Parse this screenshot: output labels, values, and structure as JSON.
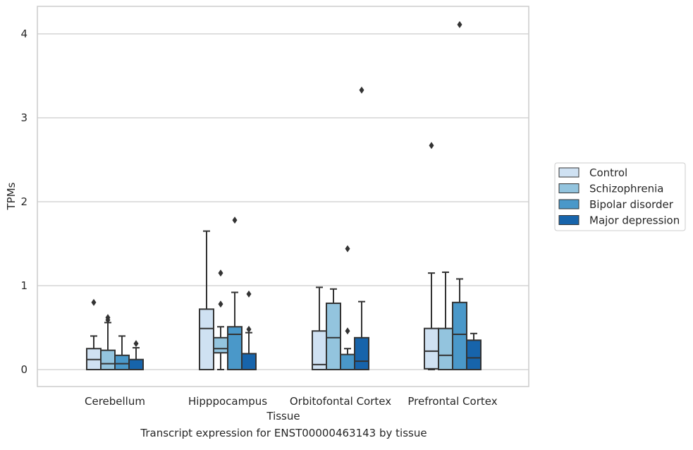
{
  "caption": "Transcript expression for ENST00000463143 by tissue",
  "colors": {
    "Control": "#cfe1f2",
    "Schizophrenia": "#93c4de",
    "Bipolar disorder": "#4a98c9",
    "Major depression": "#1764ab",
    "grid": "#cccccc",
    "frame": "#cccccc",
    "line": "#333333"
  },
  "chart_data": {
    "type": "box",
    "xlabel": "Tissue",
    "ylabel": "TPMs",
    "ylim": [
      -0.2,
      4.32
    ],
    "yticks": [
      0,
      1,
      2,
      3,
      4
    ],
    "ytick_labels": [
      "0",
      "1",
      "2",
      "3",
      "4"
    ],
    "grid": "horizontal",
    "legend_position": "right, outside plot",
    "categories": [
      "Cerebellum",
      "Hipppocampus",
      "Orbitofontal Cortex",
      "Prefrontal Cortex"
    ],
    "series": [
      {
        "name": "Control",
        "boxes": [
          {
            "whislo": 0.0,
            "q1": 0.0,
            "med": 0.12,
            "q3": 0.25,
            "whishi": 0.4,
            "fliers": [
              0.8
            ]
          },
          {
            "whislo": 0.0,
            "q1": 0.0,
            "med": 0.49,
            "q3": 0.72,
            "whishi": 1.65,
            "fliers": []
          },
          {
            "whislo": 0.0,
            "q1": 0.0,
            "med": 0.06,
            "q3": 0.46,
            "whishi": 0.98,
            "fliers": []
          },
          {
            "whislo": 0.0,
            "q1": 0.01,
            "med": 0.22,
            "q3": 0.49,
            "whishi": 1.15,
            "fliers": [
              2.67
            ]
          }
        ]
      },
      {
        "name": "Schizophrenia",
        "boxes": [
          {
            "whislo": 0.0,
            "q1": 0.0,
            "med": 0.07,
            "q3": 0.23,
            "whishi": 0.56,
            "fliers": [
              0.59,
              0.62
            ]
          },
          {
            "whislo": 0.0,
            "q1": 0.2,
            "med": 0.25,
            "q3": 0.38,
            "whishi": 0.51,
            "fliers": [
              0.78,
              1.15
            ]
          },
          {
            "whislo": 0.0,
            "q1": 0.0,
            "med": 0.38,
            "q3": 0.79,
            "whishi": 0.96,
            "fliers": []
          },
          {
            "whislo": 0.0,
            "q1": 0.0,
            "med": 0.17,
            "q3": 0.49,
            "whishi": 1.16,
            "fliers": []
          }
        ]
      },
      {
        "name": "Bipolar disorder",
        "boxes": [
          {
            "whislo": 0.0,
            "q1": 0.0,
            "med": 0.07,
            "q3": 0.17,
            "whishi": 0.4,
            "fliers": []
          },
          {
            "whislo": 0.0,
            "q1": 0.0,
            "med": 0.42,
            "q3": 0.51,
            "whishi": 0.92,
            "fliers": [
              1.78
            ]
          },
          {
            "whislo": 0.0,
            "q1": 0.0,
            "med": 0.0,
            "q3": 0.18,
            "whishi": 0.25,
            "fliers": [
              0.46,
              1.44
            ]
          },
          {
            "whislo": 0.0,
            "q1": 0.0,
            "med": 0.42,
            "q3": 0.8,
            "whishi": 1.08,
            "fliers": [
              4.11
            ]
          }
        ]
      },
      {
        "name": "Major depression",
        "boxes": [
          {
            "whislo": 0.0,
            "q1": 0.0,
            "med": 0.0,
            "q3": 0.12,
            "whishi": 0.26,
            "fliers": [
              0.31
            ]
          },
          {
            "whislo": 0.0,
            "q1": 0.0,
            "med": 0.0,
            "q3": 0.19,
            "whishi": 0.44,
            "fliers": [
              0.48,
              0.9
            ]
          },
          {
            "whislo": 0.0,
            "q1": 0.0,
            "med": 0.1,
            "q3": 0.38,
            "whishi": 0.81,
            "fliers": [
              3.33
            ]
          },
          {
            "whislo": 0.0,
            "q1": 0.0,
            "med": 0.14,
            "q3": 0.35,
            "whishi": 0.43,
            "fliers": []
          }
        ]
      }
    ]
  }
}
